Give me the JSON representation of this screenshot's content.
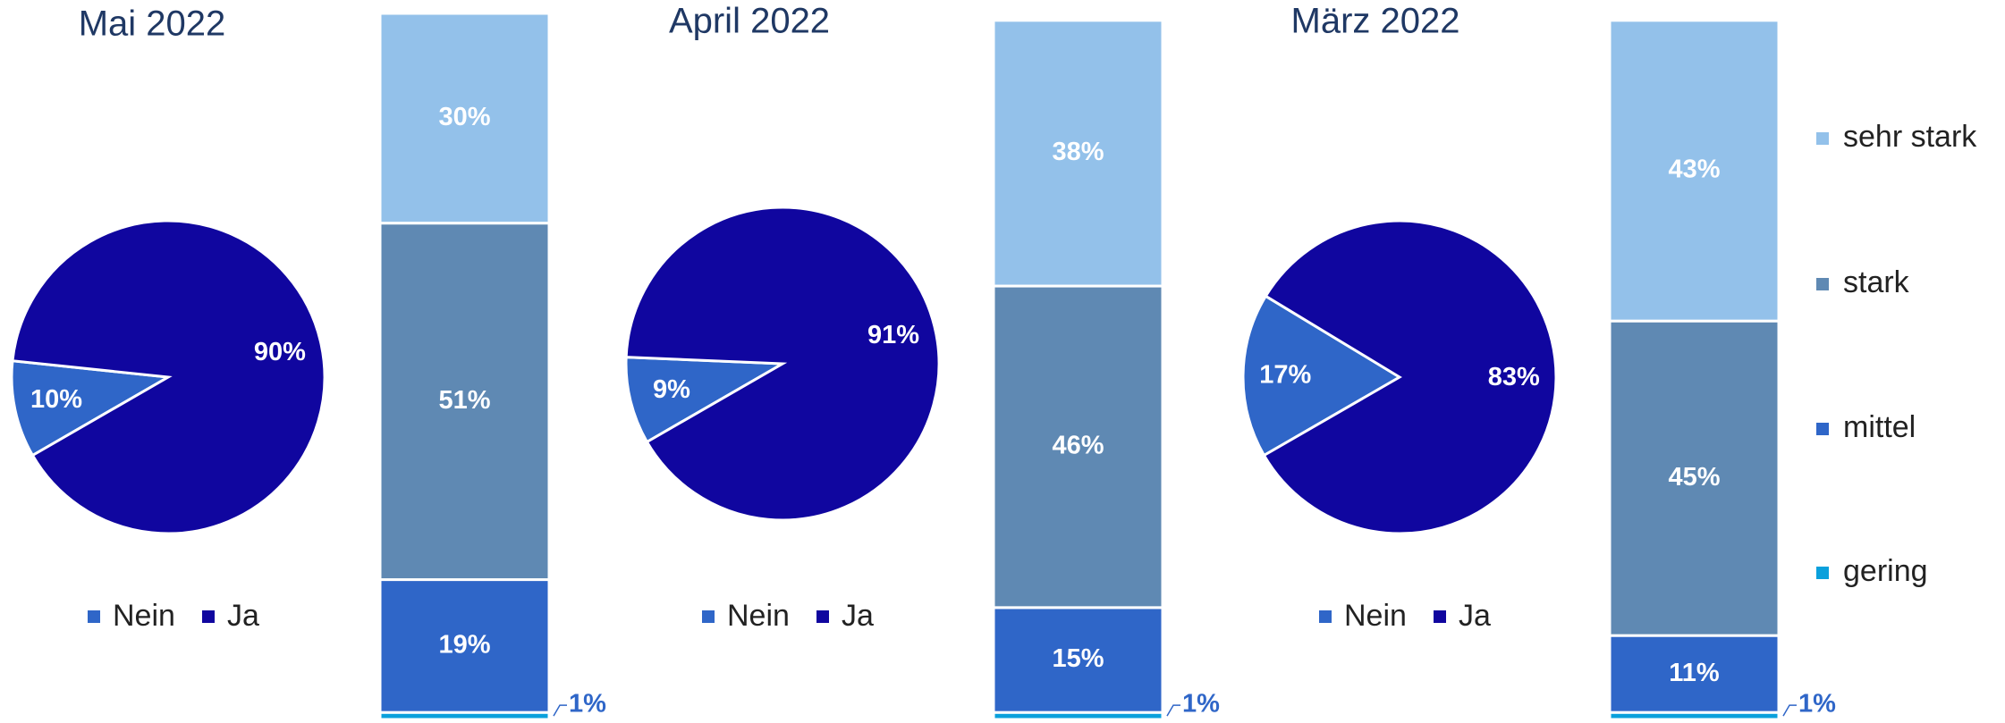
{
  "chart_data": [
    {
      "type": "pie",
      "title": "Mai 2022",
      "categories": [
        "Nein",
        "Ja"
      ],
      "values": [
        10,
        90
      ],
      "value_labels": [
        "10%",
        "90%"
      ],
      "colors": [
        "#2f66c8",
        "#10069f"
      ]
    },
    {
      "type": "pie",
      "title": "April 2022",
      "categories": [
        "Nein",
        "Ja"
      ],
      "values": [
        9,
        91
      ],
      "value_labels": [
        "9%",
        "91%"
      ],
      "colors": [
        "#2f66c8",
        "#10069f"
      ]
    },
    {
      "type": "pie",
      "title": "März 2022",
      "categories": [
        "Nein",
        "Ja"
      ],
      "values": [
        17,
        83
      ],
      "value_labels": [
        "17%",
        "83%"
      ],
      "colors": [
        "#2f66c8",
        "#10069f"
      ]
    },
    {
      "type": "bar",
      "stacked": true,
      "categories": [
        null,
        null,
        null
      ],
      "ylim": [
        0,
        101
      ],
      "series": [
        {
          "name": "gering",
          "color": "#0aa0dc",
          "values": [
            1,
            1,
            1
          ],
          "value_labels": [
            "1%",
            "1%",
            "1%"
          ]
        },
        {
          "name": "mittel",
          "color": "#2f66c8",
          "values": [
            19,
            15,
            11
          ],
          "value_labels": [
            "19%",
            "15%",
            "11%"
          ]
        },
        {
          "name": "stark",
          "color": "#5f89b3",
          "values": [
            51,
            46,
            45
          ],
          "value_labels": [
            "51%",
            "46%",
            "45%"
          ]
        },
        {
          "name": "sehr stark",
          "color": "#93c1ea",
          "values": [
            30,
            38,
            43
          ],
          "value_labels": [
            "30%",
            "38%",
            "43%"
          ]
        }
      ]
    }
  ]
}
